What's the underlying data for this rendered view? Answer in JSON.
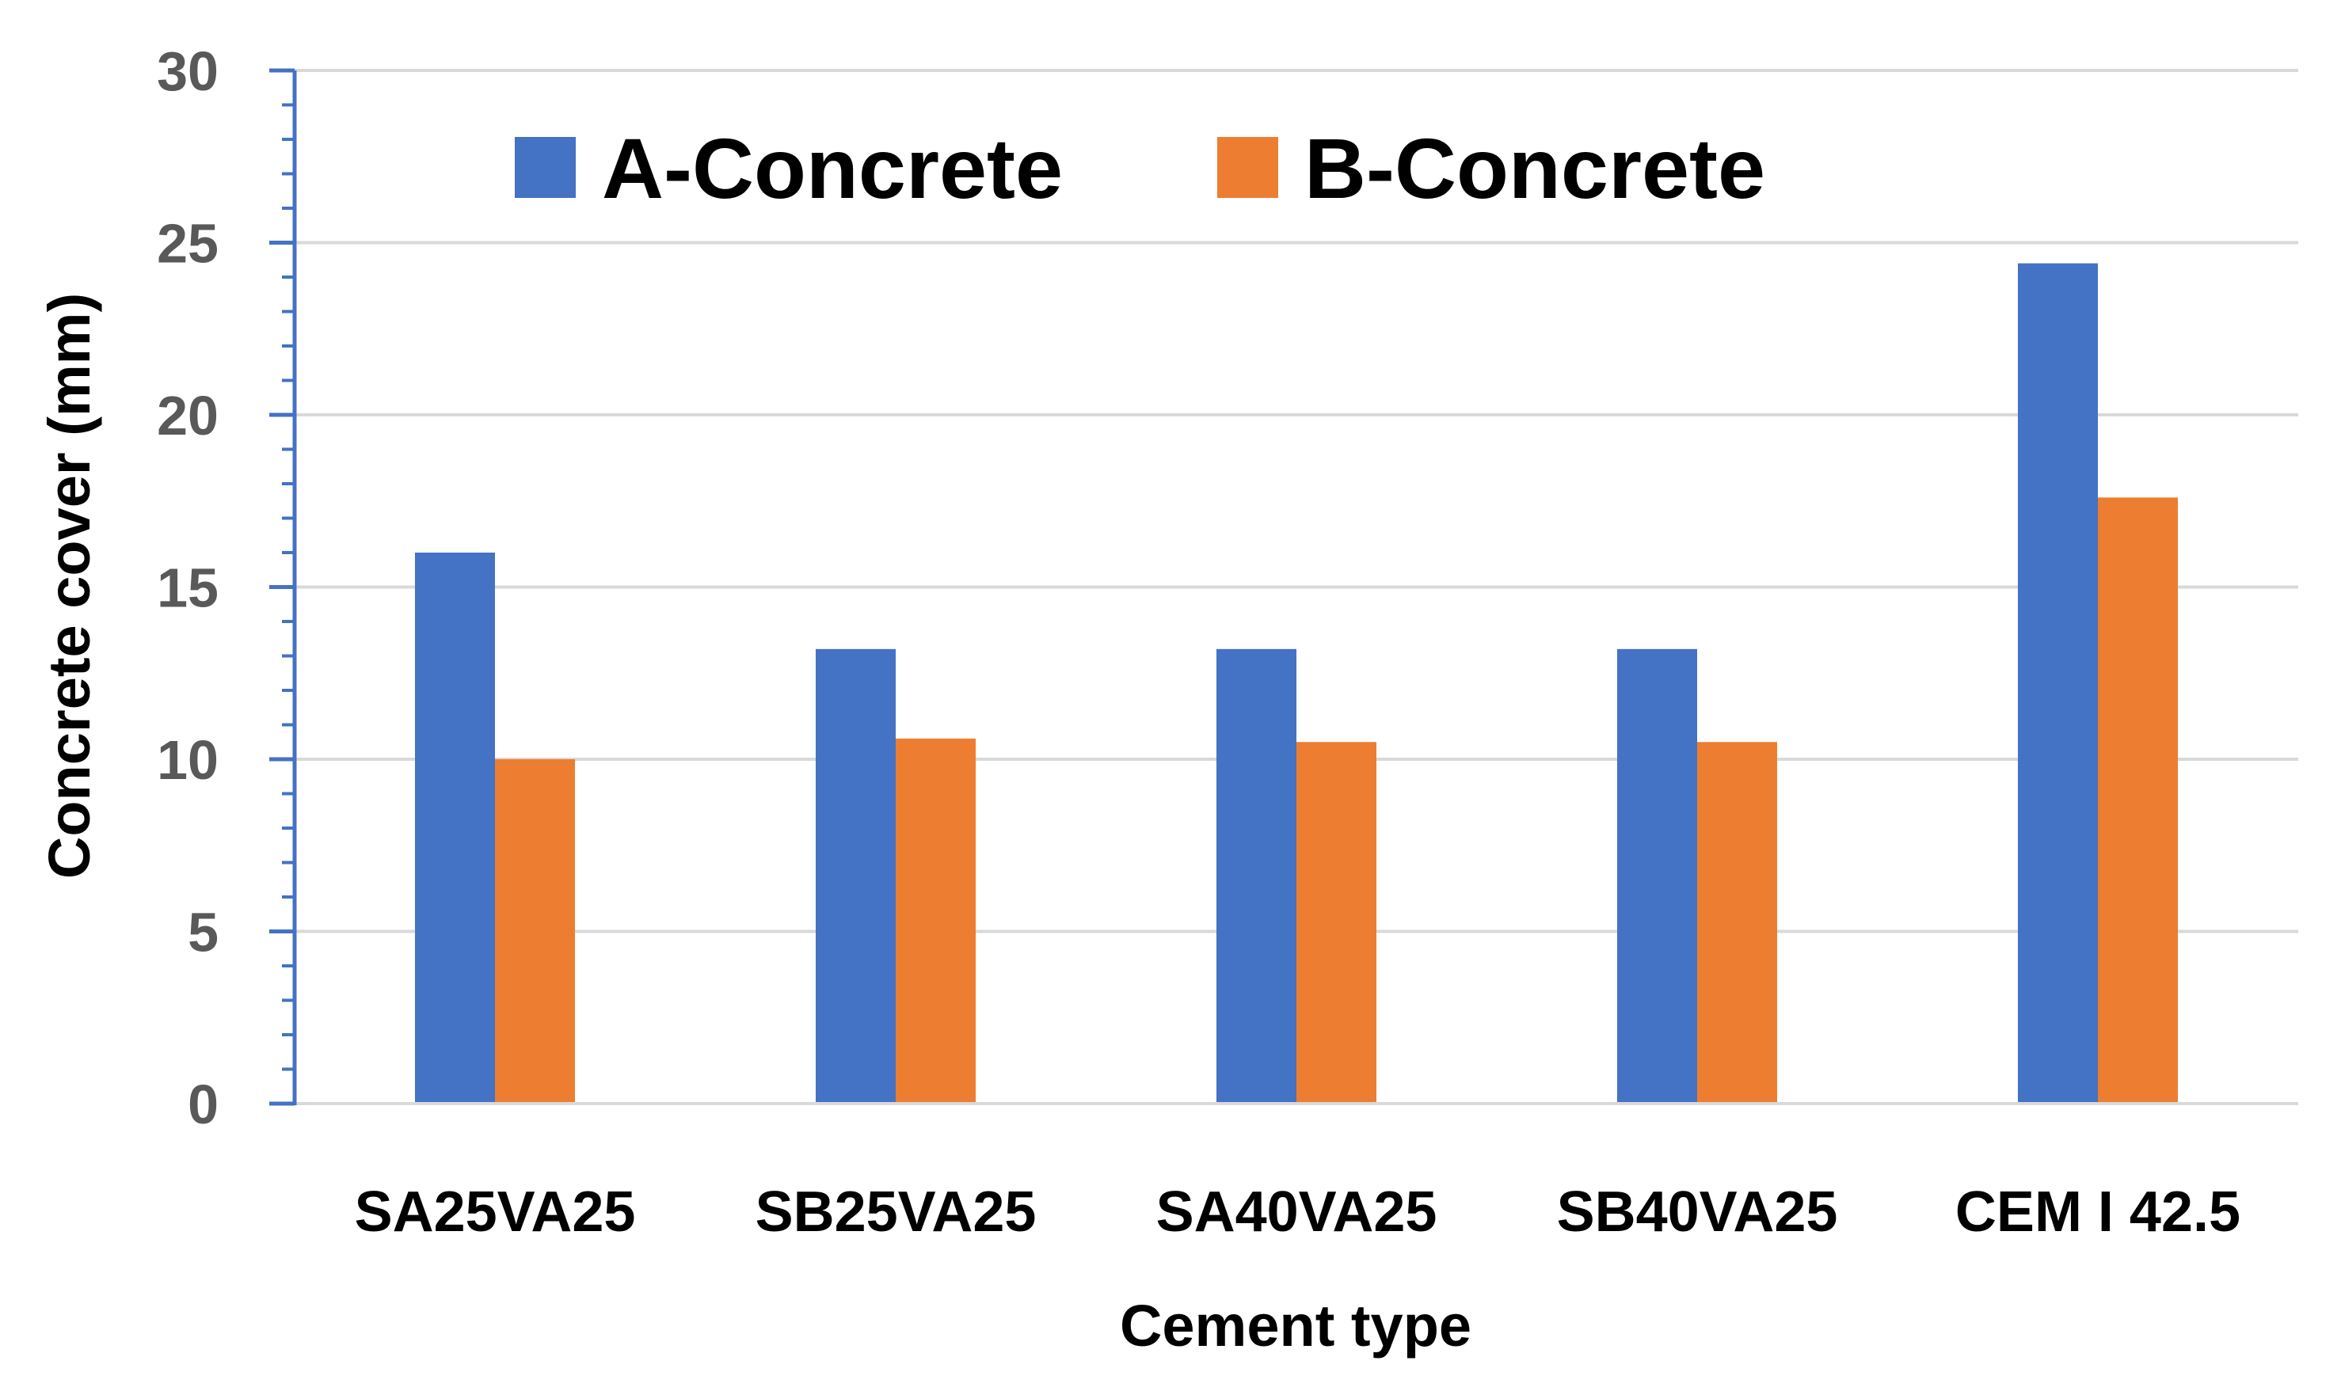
{
  "chart_data": {
    "type": "bar",
    "title": "",
    "xlabel": "Cement type",
    "ylabel": "Concrete cover (mm)",
    "categories": [
      "SA25VA25",
      "SB25VA25",
      "SA40VA25",
      "SB40VA25",
      "CEM I 42.5"
    ],
    "series": [
      {
        "name": "A-Concrete",
        "values": [
          16.0,
          13.2,
          13.2,
          13.2,
          24.4
        ],
        "color": "#4472C4"
      },
      {
        "name": "B-Concrete",
        "values": [
          10.0,
          10.6,
          10.5,
          10.5,
          17.6
        ],
        "color": "#ED7D31"
      }
    ],
    "ylim": [
      0,
      30
    ],
    "yticks": [
      "0",
      "5",
      "10",
      "15",
      "20",
      "25",
      "30"
    ],
    "grid": true,
    "legend_position": "top"
  },
  "colors": {
    "grid": "#D9D9D9",
    "axis": "#4472C4",
    "tick_label": "#595959",
    "label": "#000000"
  }
}
